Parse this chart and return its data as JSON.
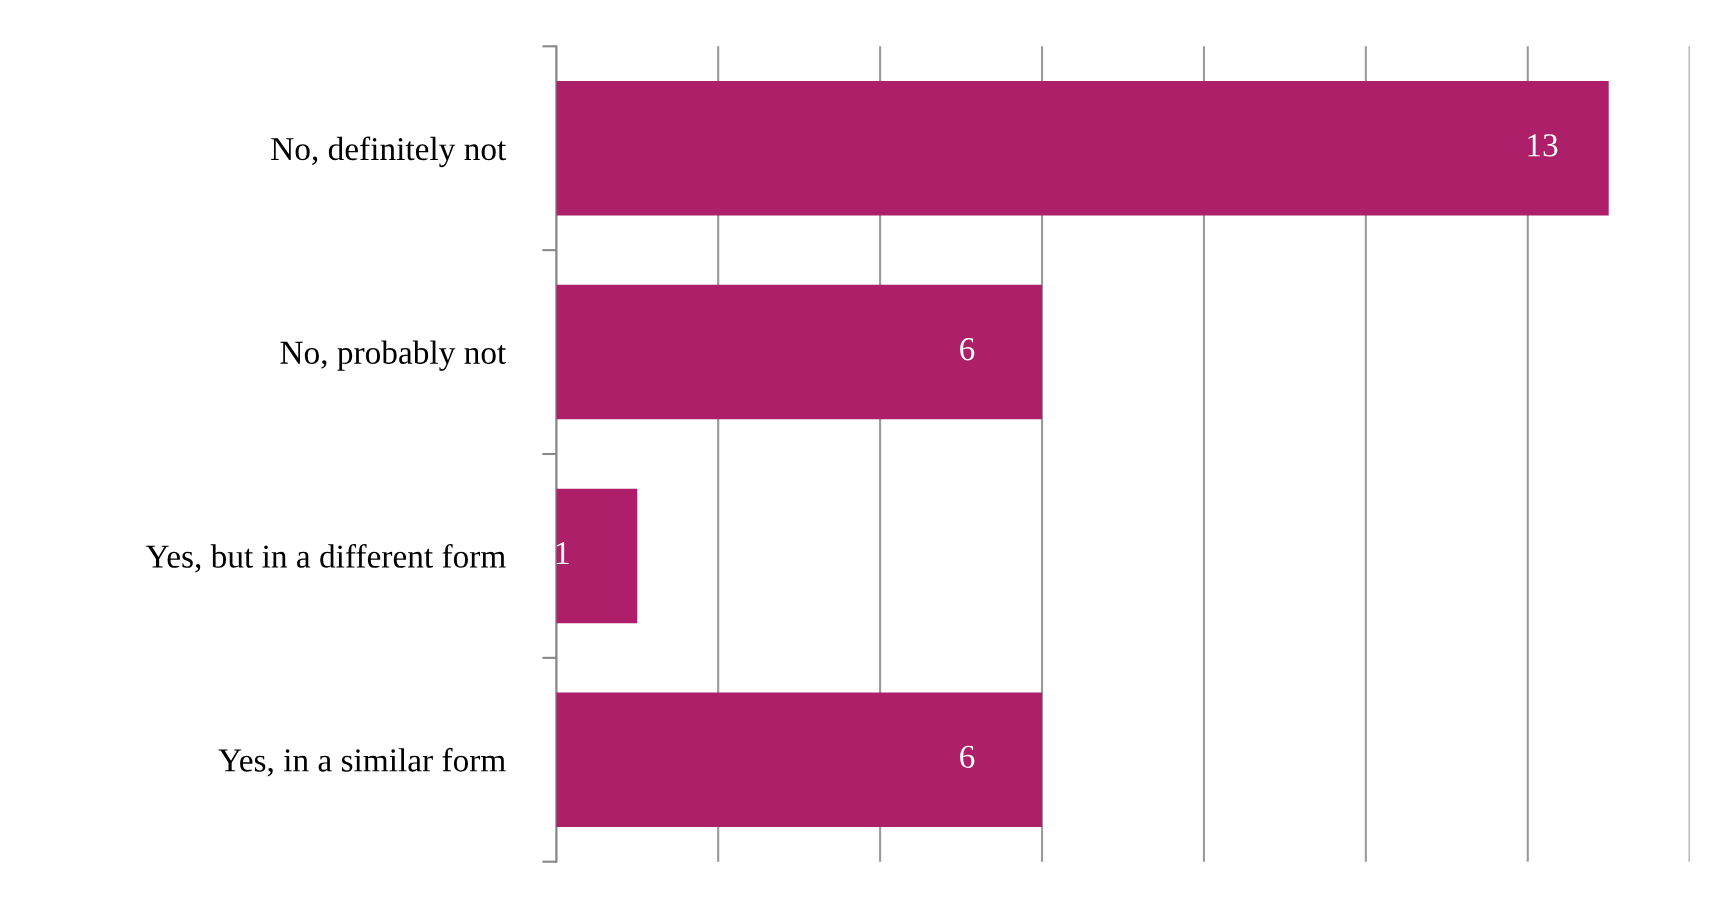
{
  "chart_data": {
    "type": "bar",
    "orientation": "horizontal",
    "categories": [
      "No, definitely not",
      "No, probably not",
      "Yes, but in a different form",
      "Yes, in a similar form"
    ],
    "values": [
      13,
      6,
      1,
      6
    ],
    "color": "#ad1f69",
    "xlim": [
      0,
      14
    ],
    "xticks": [
      {
        "value": 0,
        "label": null
      },
      {
        "value": 2,
        "label": null
      },
      {
        "value": 4,
        "label": null
      },
      {
        "value": 6,
        "label": null
      },
      {
        "value": 8,
        "label": null
      },
      {
        "value": 10,
        "label": null
      },
      {
        "value": 12,
        "label": null
      },
      {
        "value": 14,
        "label": null
      }
    ],
    "grid": "x",
    "tick_labels": "y",
    "data_labels": true
  }
}
